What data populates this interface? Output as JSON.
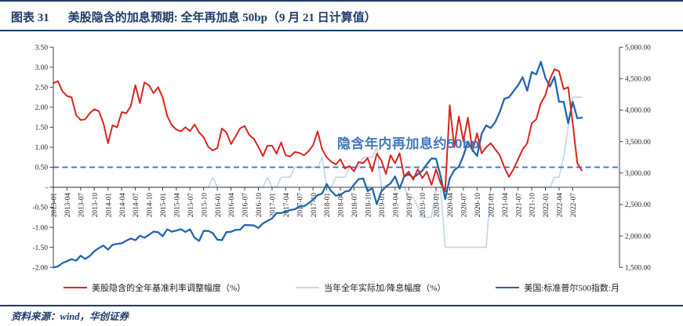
{
  "style": {
    "accent_navy": "#1e3a68",
    "axis_color": "#404040"
  },
  "header": {
    "figure_label": "图表 31",
    "title": "美股隐含的加息预期: 全年再加息 50bp（9 月 21 日计算值）"
  },
  "footer": {
    "source": "资料来源：wind，华创证券"
  },
  "chart_data": {
    "type": "line",
    "title": "",
    "grid": false,
    "legend_position": "bottom",
    "frequency": "monthly",
    "x_start": "2013-01",
    "x_end": "2022-09",
    "x": [
      "2013-01",
      "2013-02",
      "2013-03",
      "2013-04",
      "2013-05",
      "2013-06",
      "2013-07",
      "2013-08",
      "2013-09",
      "2013-10",
      "2013-11",
      "2013-12",
      "2014-01",
      "2014-02",
      "2014-03",
      "2014-04",
      "2014-05",
      "2014-06",
      "2014-07",
      "2014-08",
      "2014-09",
      "2014-10",
      "2014-11",
      "2014-12",
      "2015-01",
      "2015-02",
      "2015-03",
      "2015-04",
      "2015-05",
      "2015-06",
      "2015-07",
      "2015-08",
      "2015-09",
      "2015-10",
      "2015-11",
      "2015-12",
      "2016-01",
      "2016-02",
      "2016-03",
      "2016-04",
      "2016-05",
      "2016-06",
      "2016-07",
      "2016-08",
      "2016-09",
      "2016-10",
      "2016-11",
      "2016-12",
      "2017-01",
      "2017-02",
      "2017-03",
      "2017-04",
      "2017-05",
      "2017-06",
      "2017-07",
      "2017-08",
      "2017-09",
      "2017-10",
      "2017-11",
      "2017-12",
      "2018-01",
      "2018-02",
      "2018-03",
      "2018-04",
      "2018-05",
      "2018-06",
      "2018-07",
      "2018-08",
      "2018-09",
      "2018-10",
      "2018-11",
      "2018-12",
      "2019-01",
      "2019-02",
      "2019-03",
      "2019-04",
      "2019-05",
      "2019-06",
      "2019-07",
      "2019-08",
      "2019-09",
      "2019-10",
      "2019-11",
      "2019-12",
      "2020-01",
      "2020-02",
      "2020-03",
      "2020-04",
      "2020-05",
      "2020-06",
      "2020-07",
      "2020-08",
      "2020-09",
      "2020-10",
      "2020-11",
      "2020-12",
      "2021-01",
      "2021-02",
      "2021-03",
      "2021-04",
      "2021-05",
      "2021-06",
      "2021-07",
      "2021-08",
      "2021-09",
      "2021-10",
      "2021-11",
      "2021-12",
      "2022-01",
      "2022-02",
      "2022-03",
      "2022-04",
      "2022-05",
      "2022-06",
      "2022-07",
      "2022-08",
      "2022-09"
    ],
    "x_tick_labels": [
      "2013-01",
      "2013-04",
      "2013-07",
      "2013-10",
      "2014-01",
      "2014-04",
      "2014-07",
      "2014-10",
      "2015-01",
      "2015-04",
      "2015-07",
      "2015-10",
      "2016-01",
      "2016-04",
      "2016-07",
      "2016-10",
      "2017-01",
      "2017-04",
      "2017-07",
      "2017-10",
      "2018-01",
      "2018-04",
      "2018-07",
      "2018-10",
      "2019-01",
      "2019-04",
      "2019-07",
      "2019-10",
      "2020-01",
      "2020-04",
      "2020-07",
      "2020-10",
      "2021-01",
      "2021-04",
      "2021-07",
      "2021-10",
      "2022-01",
      "2022-04",
      "2022-07"
    ],
    "left_axis": {
      "min": -2.0,
      "max": 3.5,
      "step": 0.5,
      "tick_labels": [
        "3.50",
        "3.00",
        "2.50",
        "2.00",
        "1.50",
        "1.00",
        "0.50",
        "-",
        "-0.50",
        "-1.00",
        "-1.50",
        "-2.00"
      ]
    },
    "right_axis": {
      "min": 1500,
      "max": 5000,
      "step": 500,
      "tick_labels": [
        "5,000.00",
        "4,500.00",
        "4,000.00",
        "3,500.00",
        "3,000.00",
        "2,500.00",
        "2,000.00",
        "1,500.00"
      ]
    },
    "reference_line": {
      "value": 0.5,
      "style": "dashed",
      "color": "#4472c4"
    },
    "annotation": {
      "text": "隐含年内再加息约50bp",
      "color": "#4577bd"
    },
    "series": [
      {
        "name": "美股隐含的全年基准利率调整幅度（%）",
        "axis": "left",
        "color": "#d9251d",
        "width": 2.0,
        "values": [
          2.6,
          2.65,
          2.4,
          2.28,
          2.25,
          1.8,
          1.68,
          1.7,
          1.85,
          1.95,
          1.9,
          1.6,
          1.1,
          1.55,
          1.5,
          1.88,
          1.85,
          2.03,
          2.55,
          2.1,
          2.62,
          2.55,
          2.35,
          2.5,
          2.25,
          1.78,
          1.55,
          1.44,
          1.4,
          1.5,
          1.4,
          1.57,
          1.37,
          1.25,
          1.01,
          0.92,
          0.98,
          1.47,
          1.37,
          1.08,
          1.27,
          1.47,
          1.53,
          1.31,
          1.21,
          1.01,
          0.78,
          1.04,
          1.04,
          0.84,
          1.12,
          0.8,
          0.77,
          0.88,
          0.86,
          0.8,
          0.9,
          1.05,
          1.4,
          0.95,
          0.75,
          0.64,
          0.57,
          0.7,
          0.47,
          0.53,
          0.4,
          0.63,
          0.6,
          0.73,
          0.4,
          0.84,
          0.67,
          0.33,
          0.8,
          0.6,
          0.85,
          0.27,
          0.39,
          0.19,
          0.45,
          0.23,
          0.39,
          0.06,
          0.45,
          0.1,
          -0.1,
          2.05,
          1.0,
          1.77,
          1.15,
          1.74,
          0.9,
          1.35,
          0.85,
          1.0,
          1.1,
          0.95,
          0.8,
          0.5,
          0.26,
          0.45,
          0.7,
          0.95,
          1.1,
          1.6,
          1.7,
          2.1,
          2.3,
          2.7,
          2.95,
          2.9,
          2.45,
          2.5,
          1.6,
          0.6,
          0.42
        ]
      },
      {
        "name": "当年全年实际加/降息幅度（%）",
        "axis": "left",
        "color": "#bdd7ee",
        "width": 1.6,
        "values": [
          0,
          0,
          0,
          0,
          0,
          0,
          0,
          0,
          0,
          0,
          0,
          0,
          0,
          0,
          0,
          0,
          0,
          0,
          0,
          0,
          0,
          0,
          0,
          0,
          0,
          0,
          0,
          0,
          0,
          0,
          0,
          0,
          0,
          0,
          0,
          0.25,
          0,
          0,
          0,
          0,
          0,
          0,
          0,
          0,
          0,
          0,
          0,
          0.25,
          0,
          0,
          0.25,
          0.25,
          0.25,
          0.5,
          0.5,
          0.5,
          0.5,
          0.5,
          0.5,
          0.75,
          0,
          0,
          0.25,
          0.25,
          0.25,
          0.5,
          0.5,
          0.5,
          0.75,
          0.75,
          0.75,
          1.0,
          0,
          0,
          0,
          0,
          0,
          0,
          -0.25,
          -0.25,
          -0.5,
          -0.75,
          -0.75,
          -0.75,
          0,
          0,
          -1.5,
          -1.5,
          -1.5,
          -1.5,
          -1.5,
          -1.5,
          -1.5,
          -1.5,
          -1.5,
          -1.5,
          0,
          0,
          0,
          0,
          0,
          0,
          0,
          0,
          0,
          0,
          0,
          0,
          0,
          0,
          0.25,
          0.25,
          0.75,
          1.5,
          2.25,
          2.25,
          2.25
        ]
      },
      {
        "name": "美国:标准普尔500指数:月",
        "axis": "right",
        "color": "#2265ae",
        "width": 2.3,
        "values": [
          1498,
          1515,
          1569,
          1598,
          1631,
          1606,
          1686,
          1633,
          1682,
          1757,
          1806,
          1848,
          1783,
          1859,
          1872,
          1884,
          1924,
          1960,
          1931,
          2003,
          1972,
          2018,
          2068,
          2059,
          1995,
          2105,
          2068,
          2086,
          2107,
          2063,
          2104,
          1972,
          1920,
          2079,
          2080,
          2044,
          1940,
          1932,
          2060,
          2065,
          2097,
          2099,
          2174,
          2171,
          2168,
          2126,
          2199,
          2239,
          2279,
          2364,
          2363,
          2384,
          2412,
          2423,
          2470,
          2472,
          2519,
          2575,
          2648,
          2674,
          2824,
          2714,
          2641,
          2648,
          2705,
          2718,
          2816,
          2902,
          2914,
          2712,
          2760,
          2507,
          2704,
          2784,
          2834,
          2946,
          2752,
          2942,
          2980,
          2926,
          2977,
          3038,
          3141,
          3231,
          3226,
          2954,
          2585,
          2912,
          3044,
          3100,
          3271,
          3500,
          3363,
          3270,
          3622,
          3756,
          3714,
          3811,
          3973,
          4181,
          4204,
          4298,
          4395,
          4523,
          4308,
          4605,
          4567,
          4766,
          4516,
          4374,
          4530,
          4132,
          4132,
          3790,
          4130,
          3870,
          3880
        ]
      }
    ]
  }
}
